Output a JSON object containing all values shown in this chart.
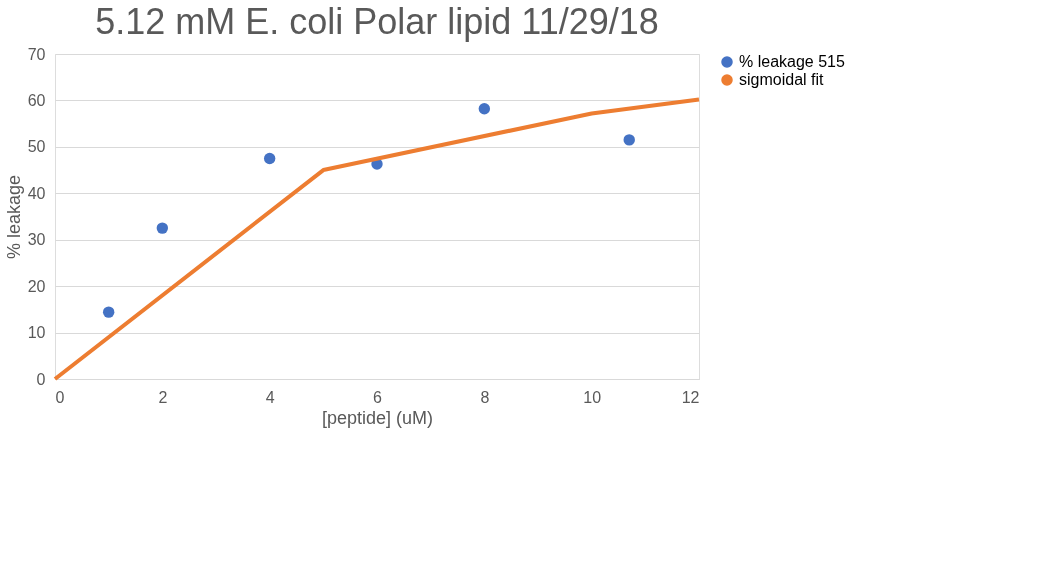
{
  "chart_data": {
    "type": "scatter",
    "title": "5.12 mM E. coli Polar lipid 11/29/18",
    "xlabel": "[peptide] (uM)",
    "ylabel": "% leakage",
    "xlim": [
      0,
      12
    ],
    "xticks": [
      0,
      2,
      4,
      6,
      8,
      10,
      12
    ],
    "ylim": [
      0,
      70
    ],
    "yticks": [
      0,
      10,
      20,
      30,
      40,
      50,
      60,
      70
    ],
    "grid": "y",
    "legend": "right",
    "series": [
      {
        "name": "% leakage 515",
        "type": "scatter",
        "marker": "circle",
        "color": "#4472c4",
        "x": [
          1,
          2,
          4,
          6,
          8,
          10.7
        ],
        "values": [
          14.4,
          32.5,
          47.5,
          46.3,
          58.2,
          51.5
        ]
      },
      {
        "name": "sigmoidal fit",
        "type": "line",
        "marker": "none",
        "color": "#ed7d31",
        "x": [
          0,
          5,
          10,
          12
        ],
        "values": [
          0,
          45,
          57.2,
          60.2
        ]
      }
    ]
  }
}
